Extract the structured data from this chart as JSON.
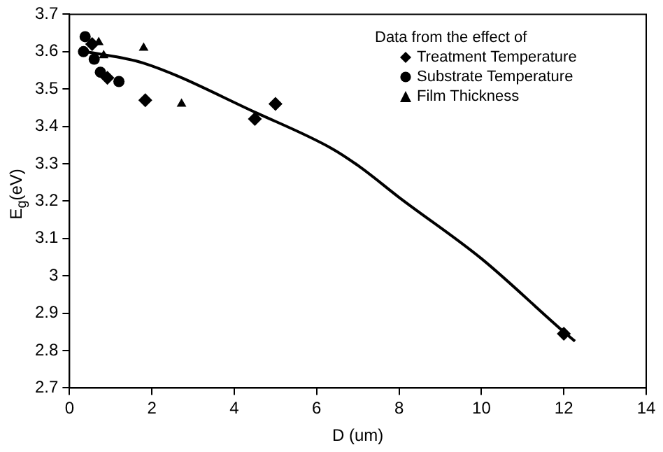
{
  "chart_data": {
    "type": "scatter",
    "xlabel": "D (um)",
    "ylabel": "E$_{g}$(eV)",
    "legend_title": "Data from the effect of",
    "legend": "top right",
    "grid": false,
    "xlim": [
      0,
      14
    ],
    "xticks": [
      0,
      2,
      4,
      6,
      8,
      10,
      12,
      14
    ],
    "ylim": [
      2.7,
      3.7
    ],
    "yticks": [
      2.7,
      2.8,
      2.9,
      3,
      3.1,
      3.2,
      3.3,
      3.4,
      3.5,
      3.6,
      3.7
    ],
    "series": [
      {
        "name": "Treatment Temperature",
        "color": "#000000",
        "marker": "diamond",
        "x": [
          0.55,
          0.92,
          1.84,
          4.5,
          5.0,
          12.0
        ],
        "values": [
          3.62,
          3.53,
          3.47,
          3.42,
          3.46,
          2.845
        ]
      },
      {
        "name": "Substrate Temperature",
        "color": "#000000",
        "marker": "circle",
        "x": [
          0.38,
          0.34,
          0.6,
          0.75,
          1.2
        ],
        "values": [
          3.64,
          3.6,
          3.58,
          3.545,
          3.52
        ]
      },
      {
        "name": "Film Thickness",
        "color": "#000000",
        "marker": "triangle",
        "x": [
          0.71,
          0.83,
          1.8,
          2.72
        ],
        "values": [
          3.625,
          3.59,
          3.61,
          3.46
        ]
      },
      {
        "type": "line",
        "color": "#000000",
        "marker": "none",
        "line_style": "solid",
        "x": [
          0.4,
          1.78,
          4.54,
          6.38,
          7.07,
          8.0,
          10.0,
          12.0,
          12.27
        ],
        "values": [
          3.6,
          3.57,
          3.436,
          3.34,
          3.29,
          3.21,
          3.046,
          2.85,
          2.825
        ]
      }
    ]
  }
}
